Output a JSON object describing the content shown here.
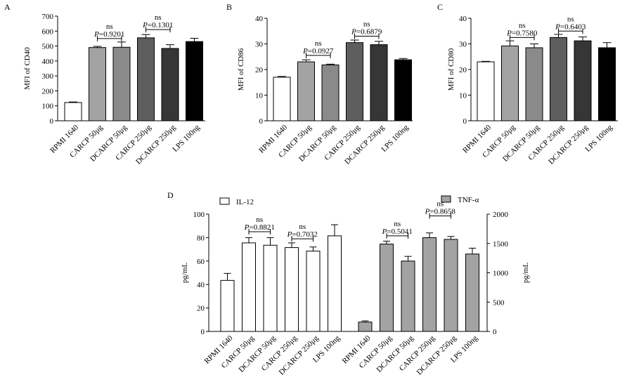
{
  "colors": {
    "rpmi": "#ffffff",
    "carcp50": "#a3a3a3",
    "dcarcp50": "#8a8a8a",
    "carcp250": "#5e5e5e",
    "dcarcp250": "#363636",
    "lps": "#000000",
    "tnf": "#a3a3a3",
    "axis": "#000000"
  },
  "chart_data": [
    {
      "type": "bar",
      "panel": "A",
      "ylabel": "MFI of CD40",
      "ylim": [
        0,
        700
      ],
      "yticks": [
        0,
        100,
        200,
        300,
        400,
        500,
        600,
        700
      ],
      "categories": [
        "RPMI 1640",
        "CARCP 50μg",
        "DCARCP 50μg",
        "CARCP 250μg",
        "DCARCP 250μg",
        "LPS 100ng"
      ],
      "values": [
        122,
        490,
        492,
        555,
        484,
        530
      ],
      "errors": [
        4,
        8,
        35,
        22,
        25,
        22
      ],
      "colors": [
        "#ffffff",
        "#a3a3a3",
        "#8a8a8a",
        "#5e5e5e",
        "#363636",
        "#000000"
      ],
      "annotations": [
        {
          "ns": "ns",
          "p": "P",
          "pval": "=0.9201",
          "from": 1,
          "to": 2,
          "y": 550
        },
        {
          "ns": "ns",
          "p": "P",
          "pval": "=0.1301",
          "from": 3,
          "to": 4,
          "y": 610
        }
      ]
    },
    {
      "type": "bar",
      "panel": "B",
      "ylabel": "MFI of CD86",
      "ylim": [
        0,
        40
      ],
      "yticks": [
        0,
        10,
        20,
        30,
        40
      ],
      "categories": [
        "RPMI 1640",
        "CARCP 50μg",
        "DCARCP 50μg",
        "CARCP 250μg",
        "DCARCP 250μg",
        "LPS 100ng"
      ],
      "values": [
        17,
        23,
        21.8,
        30.5,
        29.7,
        23.8
      ],
      "errors": [
        0.3,
        0.8,
        0.3,
        1.0,
        1.3,
        0.5
      ],
      "colors": [
        "#ffffff",
        "#a3a3a3",
        "#8a8a8a",
        "#5e5e5e",
        "#363636",
        "#000000"
      ],
      "annotations": [
        {
          "ns": "ns",
          "p": "P",
          "pval": "=0.0927",
          "from": 1,
          "to": 2,
          "y": 25.5
        },
        {
          "ns": "ns",
          "p": "P",
          "pval": "=0.6879",
          "from": 3,
          "to": 4,
          "y": 33
        }
      ]
    },
    {
      "type": "bar",
      "panel": "C",
      "ylabel": "MFI of CD80",
      "ylim": [
        0,
        40
      ],
      "yticks": [
        0,
        10,
        20,
        30,
        40
      ],
      "categories": [
        "RPMI 1640",
        "CARCP 50μg",
        "DCARCP 50μg",
        "CARCP 250μg",
        "DCARCP 250μg",
        "LPS 100ng"
      ],
      "values": [
        23,
        29.2,
        28.5,
        32.5,
        31.2,
        28.5
      ],
      "errors": [
        0.2,
        2.0,
        1.5,
        1.2,
        1.5,
        2.0
      ],
      "colors": [
        "#ffffff",
        "#a3a3a3",
        "#8a8a8a",
        "#5e5e5e",
        "#363636",
        "#000000"
      ],
      "annotations": [
        {
          "ns": "ns",
          "p": "P",
          "pval": "=0.7580",
          "from": 1,
          "to": 2,
          "y": 32.5
        },
        {
          "ns": "ns",
          "p": "P",
          "pval": "=0.6403",
          "from": 3,
          "to": 4,
          "y": 35
        }
      ]
    },
    {
      "type": "bar",
      "panel": "D",
      "series": [
        {
          "name": "IL-12",
          "axis": "left",
          "ylabel": "pg/mL",
          "ylim": [
            0,
            100
          ],
          "yticks": [
            0,
            20,
            40,
            60,
            80,
            100
          ],
          "categories": [
            "RPMI 1640",
            "CARCP 50μg",
            "DCARCP 50μg",
            "CARCP 250μg",
            "DCARCP 250μg",
            "LPS 100ng"
          ],
          "values": [
            43.5,
            75.5,
            73.5,
            71.5,
            68.5,
            81.5
          ],
          "errors": [
            6,
            4.5,
            6.5,
            4,
            3.5,
            9.5
          ],
          "color": "#ffffff",
          "annotations": [
            {
              "ns": "ns",
              "p": "P",
              "pval": "=0.8821",
              "from": 1,
              "to": 2,
              "y": 85
            },
            {
              "ns": "ns",
              "p": "P",
              "pval": "=0.7032",
              "from": 3,
              "to": 4,
              "y": 79
            }
          ]
        },
        {
          "name": "TNF-α",
          "axis": "right",
          "ylabel": "pg/mL",
          "ylim": [
            0,
            2000
          ],
          "yticks": [
            0,
            500,
            1000,
            1500,
            2000
          ],
          "categories": [
            "RPMI 1640",
            "CARCP 50μg",
            "DCARCP 50μg",
            "CARCP 250μg",
            "DCARCP 250μg",
            "LPS 100ng"
          ],
          "values": [
            160,
            1490,
            1200,
            1600,
            1570,
            1320
          ],
          "errors": [
            20,
            50,
            80,
            80,
            50,
            100
          ],
          "color": "#a3a3a3",
          "annotations": [
            {
              "ns": "ns",
              "p": "P",
              "pval": "=0.5041",
              "from": 1,
              "to": 2,
              "y": 1630
            },
            {
              "ns": "ns",
              "p": "P",
              "pval": "=0.8658",
              "from": 3,
              "to": 4,
              "y": 1970
            }
          ]
        }
      ]
    }
  ]
}
